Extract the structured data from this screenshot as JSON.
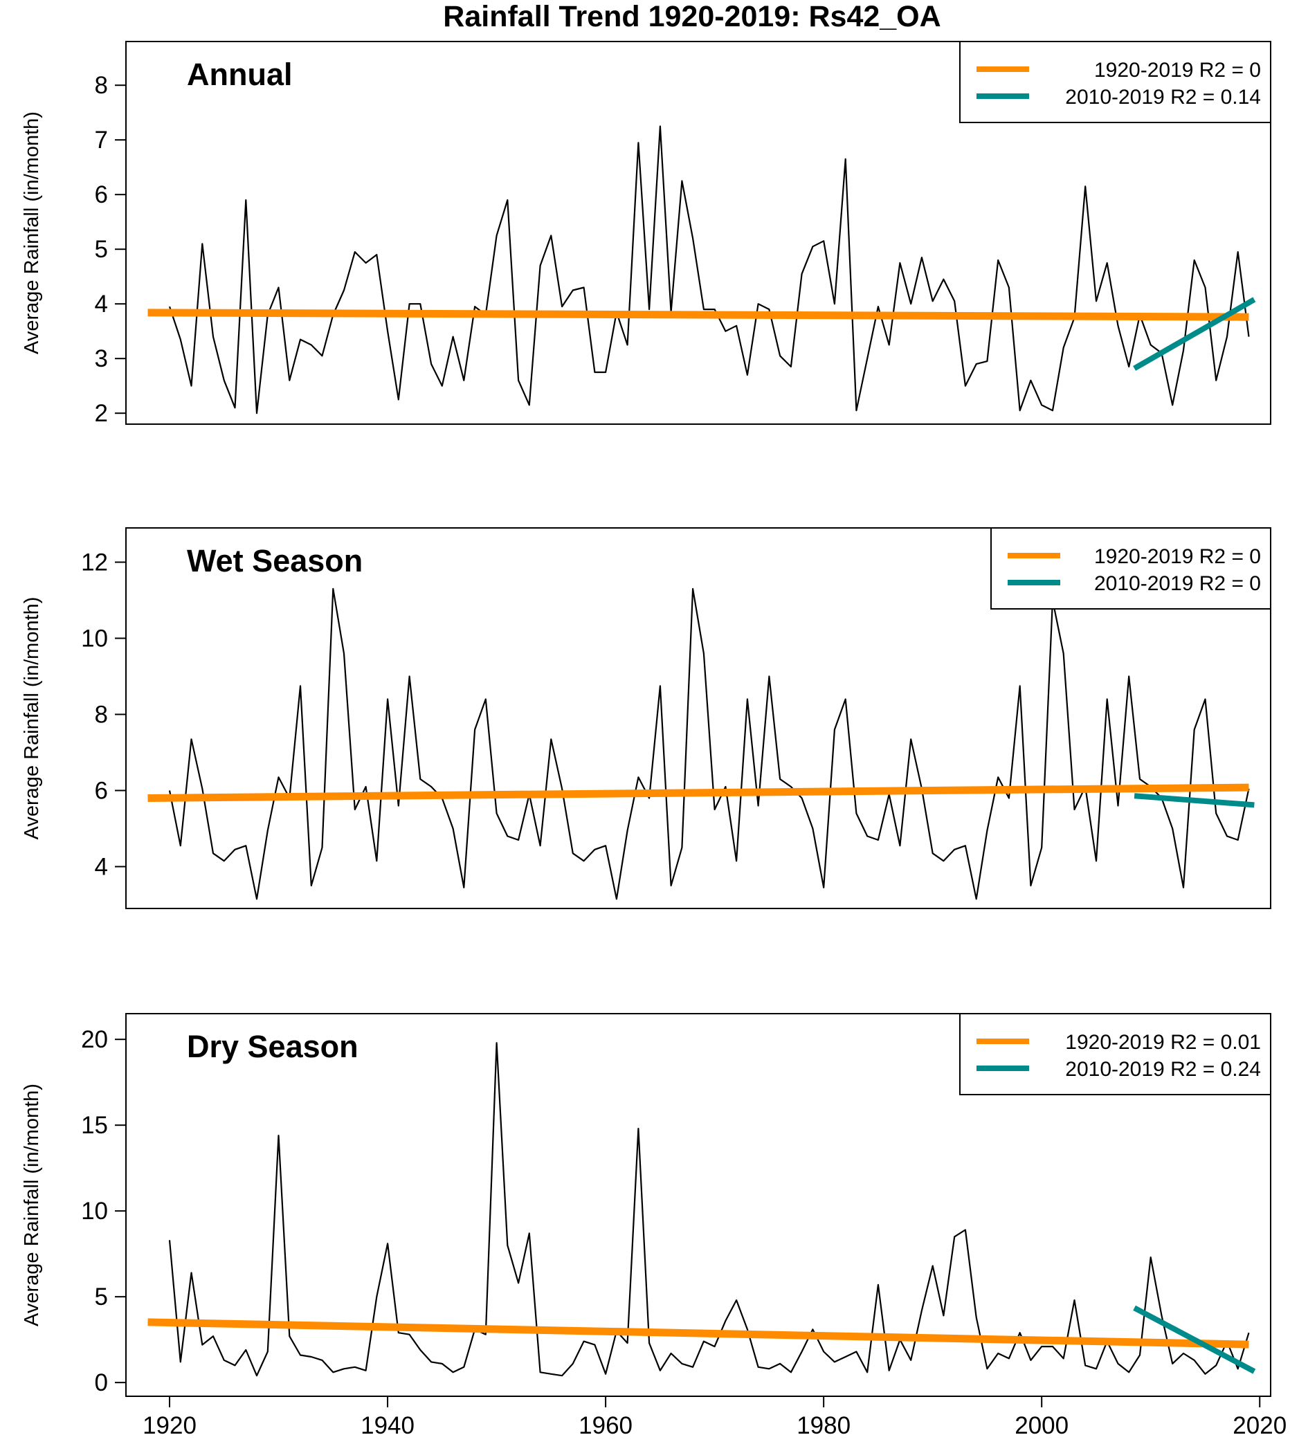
{
  "chart_data": {
    "type": "line",
    "title": "Rainfall Trend 1920-2019: Rs42_OA",
    "xlim": [
      1916,
      2021
    ],
    "x_ticks": [
      1920,
      1940,
      1960,
      1980,
      2000,
      2020
    ],
    "colors": {
      "series": "#000000",
      "trend_full": "#ff8c00",
      "trend_recent": "#008b8b"
    },
    "panels": [
      {
        "label": "Annual",
        "ylabel": "Average Rainfall (in/month)",
        "ylim": [
          1.8,
          8.8
        ],
        "y_ticks": [
          2,
          3,
          4,
          5,
          6,
          7,
          8
        ],
        "x": [
          1920,
          1921,
          1922,
          1923,
          1924,
          1925,
          1926,
          1927,
          1928,
          1929,
          1930,
          1931,
          1932,
          1933,
          1934,
          1935,
          1936,
          1937,
          1938,
          1939,
          1940,
          1941,
          1942,
          1943,
          1944,
          1945,
          1946,
          1947,
          1948,
          1949,
          1950,
          1951,
          1952,
          1953,
          1954,
          1955,
          1956,
          1957,
          1958,
          1959,
          1960,
          1961,
          1962,
          1963,
          1964,
          1965,
          1966,
          1967,
          1968,
          1969,
          1970,
          1971,
          1972,
          1973,
          1974,
          1975,
          1976,
          1977,
          1978,
          1979,
          1980,
          1981,
          1982,
          1983,
          1984,
          1985,
          1986,
          1987,
          1988,
          1989,
          1990,
          1991,
          1992,
          1993,
          1994,
          1995,
          1996,
          1997,
          1998,
          1999,
          2000,
          2001,
          2002,
          2003,
          2004,
          2005,
          2006,
          2007,
          2008,
          2009,
          2010,
          2011,
          2012,
          2013,
          2014,
          2015,
          2016,
          2017,
          2018,
          2019
        ],
        "values": [
          3.95,
          3.35,
          2.5,
          5.1,
          3.4,
          2.6,
          2.1,
          5.9,
          2.0,
          3.8,
          4.3,
          2.6,
          3.35,
          3.25,
          3.05,
          3.8,
          4.25,
          4.95,
          4.75,
          4.9,
          3.5,
          2.25,
          4.0,
          4.0,
          2.9,
          2.5,
          3.4,
          2.6,
          3.95,
          3.8,
          5.25,
          5.9,
          2.6,
          2.15,
          4.7,
          5.25,
          3.95,
          4.25,
          4.3,
          2.75,
          2.75,
          3.85,
          3.25,
          6.95,
          3.9,
          7.25,
          3.85,
          6.25,
          5.2,
          3.9,
          3.9,
          3.5,
          3.6,
          2.7,
          4.0,
          3.9,
          3.05,
          2.85,
          4.55,
          5.05,
          5.15,
          4.0,
          6.65,
          2.05,
          3.0,
          3.95,
          3.25,
          4.75,
          4.0,
          4.85,
          4.05,
          4.45,
          4.05,
          2.5,
          2.9,
          2.95,
          4.8,
          4.3,
          2.05,
          2.6,
          2.15,
          2.05,
          3.2,
          3.75,
          6.15,
          4.05,
          4.75,
          3.6,
          2.85,
          3.8,
          3.25,
          3.1,
          2.15,
          3.15,
          4.8,
          4.3,
          2.6,
          3.4,
          4.95,
          3.4
        ],
        "trend_full": {
          "x": [
            1918,
            2019
          ],
          "y": [
            3.84,
            3.76
          ]
        },
        "trend_recent": {
          "x": [
            2008.5,
            2019.5
          ],
          "y": [
            2.82,
            4.08
          ]
        },
        "legend": [
          "1920-2019  R2 = 0",
          "2010-2019  R2 = 0.14"
        ],
        "legend_placement": "top-right"
      },
      {
        "label": "Wet Season",
        "ylabel": "Average Rainfall (in/month)",
        "ylim": [
          2.9,
          12.9
        ],
        "y_ticks": [
          4,
          6,
          8,
          10,
          12
        ],
        "x": [
          1920,
          1921,
          1922,
          1923,
          1924,
          1925,
          1926,
          1927,
          1928,
          1929,
          1930,
          1931,
          1932,
          1933,
          1934,
          1935,
          1936,
          1937,
          1938,
          1939,
          1940,
          1941,
          1942,
          1943,
          1944,
          1945,
          1946,
          1947,
          1948,
          1949,
          1950,
          1951,
          1952,
          1953,
          1954,
          1955,
          1956,
          1957,
          1958,
          1959,
          1960,
          1961,
          1962,
          1963,
          1964,
          1965,
          1966,
          1967,
          1968,
          1969,
          1970,
          1971,
          1972,
          1973,
          1974,
          1975,
          1976,
          1977,
          1978,
          1979,
          1980,
          1981,
          1982,
          1983,
          1984,
          1985,
          1986,
          1987,
          1988,
          1989,
          1990,
          1991,
          1992,
          1993,
          1994,
          1995,
          1996,
          1997,
          1998,
          1999,
          2000,
          2001,
          2002,
          2003,
          2004,
          2005,
          2006,
          2007,
          2008,
          2009,
          2010,
          2011,
          2012,
          2013,
          2014,
          2015,
          2016,
          2017,
          2018,
          2019
        ],
        "values": [
          6.0,
          4.55,
          7.35,
          6.05,
          4.35,
          4.15,
          4.45,
          4.55,
          3.15,
          4.95,
          6.35,
          5.8,
          8.75,
          3.5,
          4.5,
          11.3,
          9.6,
          5.5,
          6.1,
          4.15,
          8.4,
          5.6,
          9.0,
          6.3,
          6.1,
          5.8,
          5.0,
          3.45,
          7.6,
          8.4,
          5.4,
          4.8,
          4.7,
          5.9,
          4.55,
          7.35,
          6.05,
          4.35,
          4.15,
          4.45,
          4.55,
          3.15,
          4.95,
          6.35,
          5.8,
          8.75,
          3.5,
          4.5,
          11.3,
          9.6,
          5.5,
          6.1,
          4.15,
          8.4,
          5.6,
          9.0,
          6.3,
          6.1,
          5.8,
          5.0,
          3.45,
          7.6,
          8.4,
          5.4,
          4.8,
          4.7,
          5.9,
          4.55,
          7.35,
          6.05,
          4.35,
          4.15,
          4.45,
          4.55,
          3.15,
          4.95,
          6.35,
          5.8,
          8.75,
          3.5,
          4.5,
          11.0,
          9.6,
          5.5,
          6.1,
          4.15,
          8.4,
          5.6,
          9.0,
          6.3,
          6.1,
          5.8,
          5.0,
          3.45,
          7.6,
          8.4,
          5.4,
          4.8,
          4.7,
          6.05
        ],
        "trend_full": {
          "x": [
            1918,
            2019
          ],
          "y": [
            5.8,
            6.08
          ]
        },
        "trend_recent": {
          "x": [
            2008.5,
            2019.5
          ],
          "y": [
            5.86,
            5.62
          ]
        },
        "legend": [
          "1920-2019  R2 = 0",
          "2010-2019  R2 = 0"
        ],
        "legend_placement": "top-right"
      },
      {
        "label": "Dry Season",
        "ylabel": "Average Rainfall (in/month)",
        "ylim": [
          -0.8,
          21.5
        ],
        "y_ticks": [
          0,
          5,
          10,
          15,
          20
        ],
        "x": [
          1920,
          1921,
          1922,
          1923,
          1924,
          1925,
          1926,
          1927,
          1928,
          1929,
          1930,
          1931,
          1932,
          1933,
          1934,
          1935,
          1936,
          1937,
          1938,
          1939,
          1940,
          1941,
          1942,
          1943,
          1944,
          1945,
          1946,
          1947,
          1948,
          1949,
          1950,
          1951,
          1952,
          1953,
          1954,
          1955,
          1956,
          1957,
          1958,
          1959,
          1960,
          1961,
          1962,
          1963,
          1964,
          1965,
          1966,
          1967,
          1968,
          1969,
          1970,
          1971,
          1972,
          1973,
          1974,
          1975,
          1976,
          1977,
          1978,
          1979,
          1980,
          1981,
          1982,
          1983,
          1984,
          1985,
          1986,
          1987,
          1988,
          1989,
          1990,
          1991,
          1992,
          1993,
          1994,
          1995,
          1996,
          1997,
          1998,
          1999,
          2000,
          2001,
          2002,
          2003,
          2004,
          2005,
          2006,
          2007,
          2008,
          2009,
          2010,
          2011,
          2012,
          2013,
          2014,
          2015,
          2016,
          2017,
          2018,
          2019
        ],
        "values": [
          8.3,
          1.2,
          6.4,
          2.2,
          2.7,
          1.3,
          1.0,
          1.9,
          0.4,
          1.8,
          14.4,
          2.7,
          1.6,
          1.5,
          1.3,
          0.6,
          0.8,
          0.9,
          0.7,
          5.0,
          8.1,
          2.9,
          2.8,
          1.9,
          1.2,
          1.1,
          0.6,
          0.9,
          3.1,
          2.8,
          19.8,
          8.0,
          5.8,
          8.7,
          0.6,
          0.5,
          0.4,
          1.1,
          2.4,
          2.2,
          0.5,
          3.0,
          2.3,
          14.8,
          2.3,
          0.7,
          1.7,
          1.1,
          0.9,
          2.4,
          2.1,
          3.6,
          4.8,
          3.1,
          0.9,
          0.8,
          1.1,
          0.6,
          1.8,
          3.1,
          1.8,
          1.2,
          1.5,
          1.8,
          0.6,
          5.7,
          0.7,
          2.5,
          1.3,
          4.2,
          6.8,
          3.9,
          8.5,
          8.9,
          3.8,
          0.8,
          1.7,
          1.4,
          2.9,
          1.3,
          2.1,
          2.1,
          1.4,
          4.8,
          1.0,
          0.8,
          2.4,
          1.1,
          0.6,
          1.6,
          7.3,
          3.9,
          1.1,
          1.7,
          1.3,
          0.5,
          1.0,
          2.4,
          0.8,
          2.9
        ],
        "trend_full": {
          "x": [
            1918,
            2019
          ],
          "y": [
            3.52,
            2.22
          ]
        },
        "trend_recent": {
          "x": [
            2008.5,
            2019.5
          ],
          "y": [
            4.35,
            0.65
          ]
        },
        "legend": [
          "1920-2019  R2 = 0.01",
          "2010-2019  R2 = 0.24"
        ],
        "legend_placement": "top-right"
      }
    ]
  }
}
